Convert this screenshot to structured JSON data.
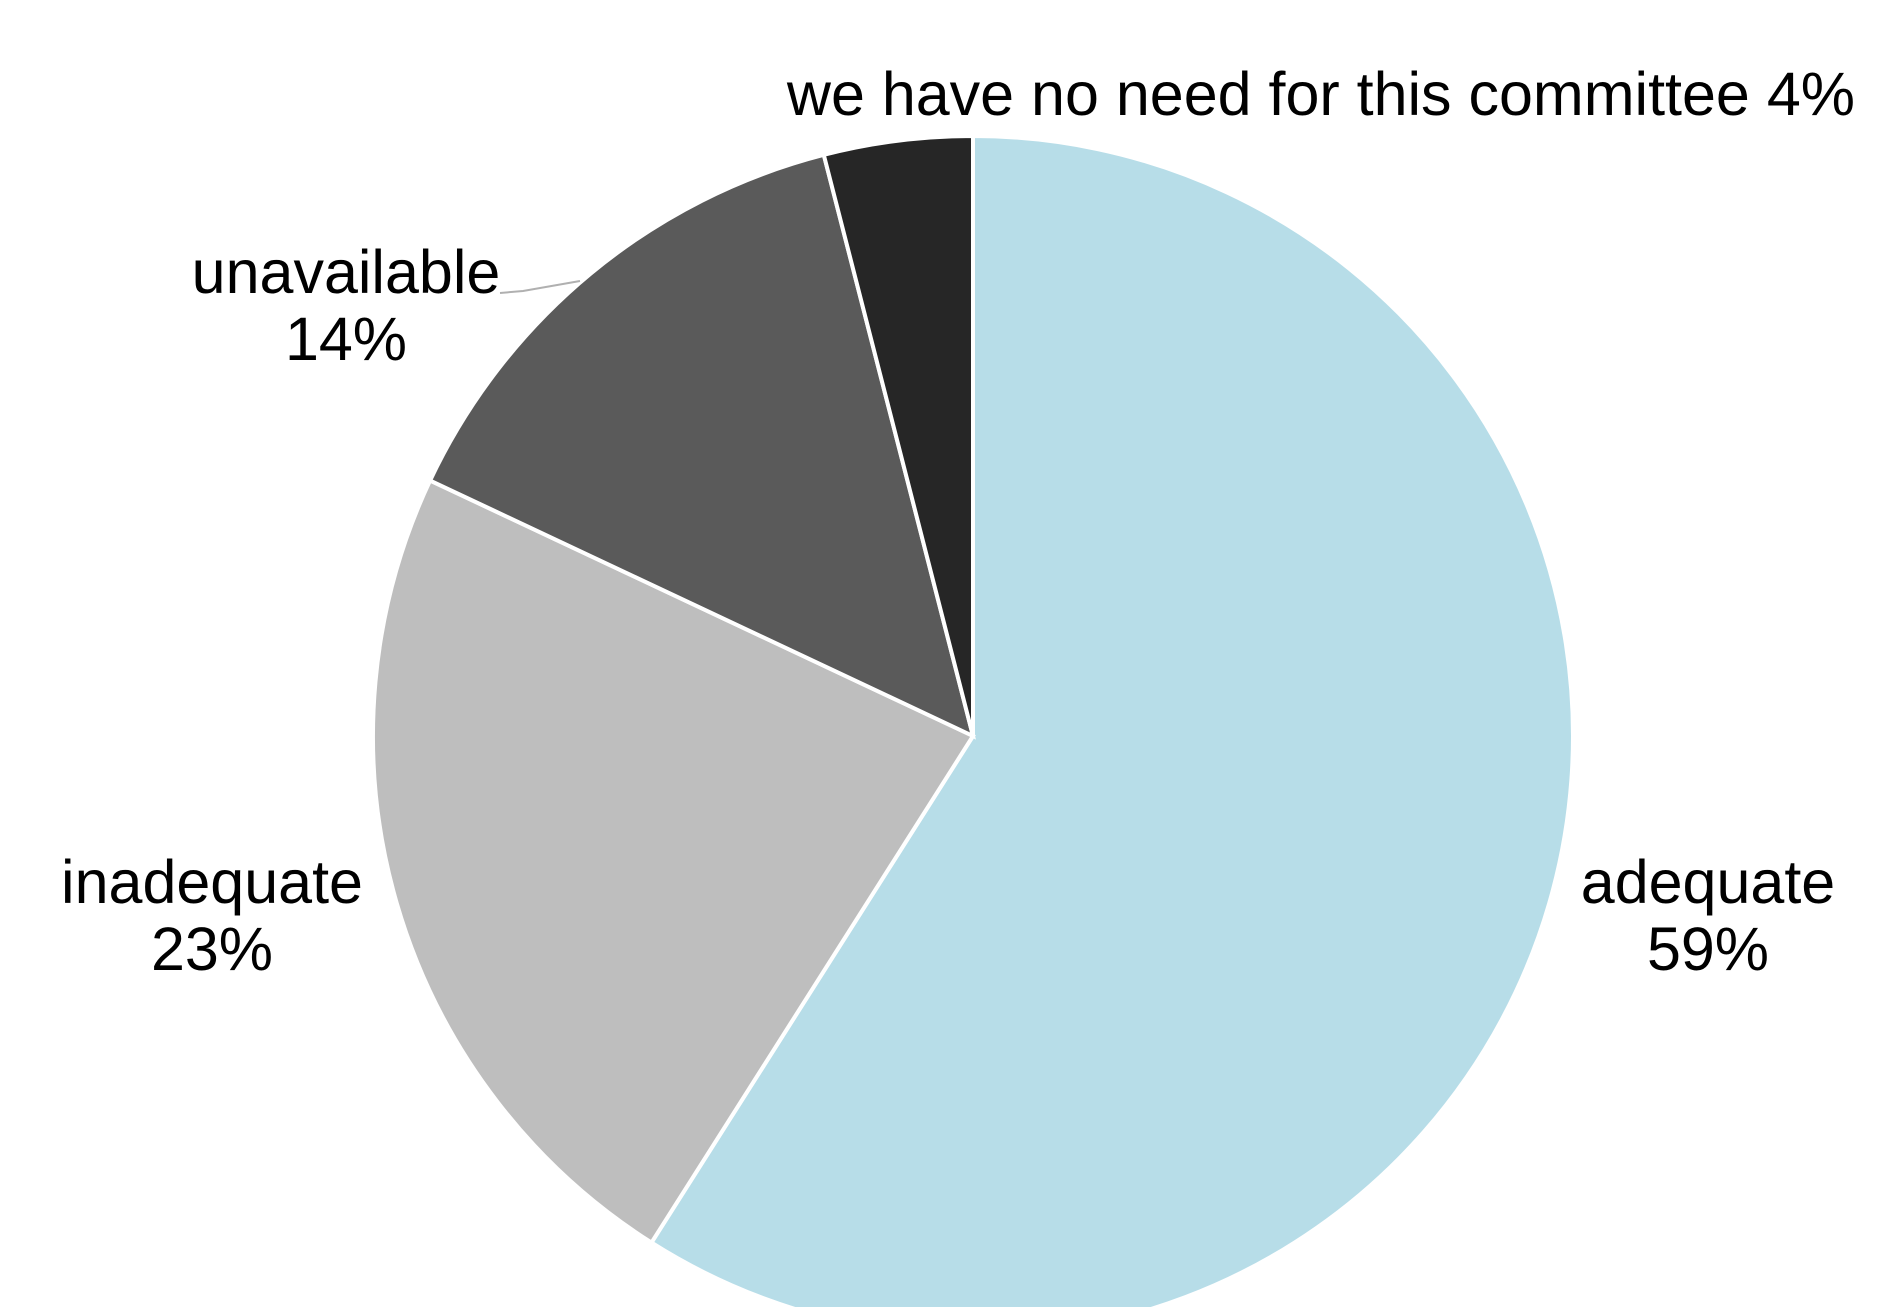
{
  "chart_data": {
    "type": "pie",
    "title": "",
    "start": "12 o'clock",
    "direction": "clockwise",
    "slices": [
      {
        "label": "adequate",
        "value": 59,
        "value_label": "59%",
        "color": "#b7dde8"
      },
      {
        "label": "inadequate",
        "value": 23,
        "value_label": "23%",
        "color": "#bebebe"
      },
      {
        "label": "unavailable",
        "value": 14,
        "value_label": "14%",
        "color": "#5a5a5a"
      },
      {
        "label": "we have no need for this committee",
        "value": 4,
        "value_label": "4%",
        "color": "#262626"
      }
    ]
  }
}
